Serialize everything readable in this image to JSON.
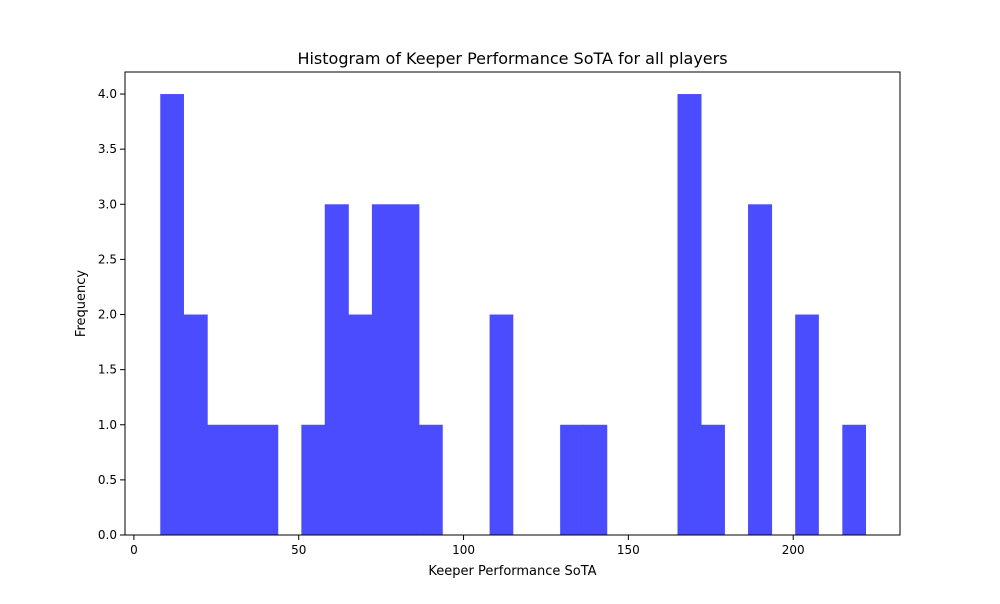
{
  "chart_data": {
    "type": "bar",
    "title": "Histogram of Keeper Performance SoTA for all players",
    "xlabel": "Keeper Performance SoTA",
    "ylabel": "Frequency",
    "xlim": [
      -2.7,
      232.4
    ],
    "ylim": [
      0,
      4.2
    ],
    "xticks": [
      0,
      50,
      100,
      150,
      200
    ],
    "yticks": [
      0.0,
      0.5,
      1.0,
      1.5,
      2.0,
      2.5,
      3.0,
      3.5,
      4.0
    ],
    "bar_color": "#4c4cff",
    "bins": [
      {
        "x0": 8.0,
        "x1": 15.1,
        "value": 4
      },
      {
        "x0": 15.1,
        "x1": 22.3,
        "value": 2
      },
      {
        "x0": 22.3,
        "x1": 29.4,
        "value": 1
      },
      {
        "x0": 29.4,
        "x1": 36.5,
        "value": 1
      },
      {
        "x0": 36.5,
        "x1": 43.7,
        "value": 1
      },
      {
        "x0": 43.7,
        "x1": 50.8,
        "value": 0
      },
      {
        "x0": 50.8,
        "x1": 57.9,
        "value": 1
      },
      {
        "x0": 57.9,
        "x1": 65.1,
        "value": 3
      },
      {
        "x0": 65.1,
        "x1": 72.2,
        "value": 2
      },
      {
        "x0": 72.2,
        "x1": 79.3,
        "value": 3
      },
      {
        "x0": 79.3,
        "x1": 86.5,
        "value": 3
      },
      {
        "x0": 86.5,
        "x1": 93.6,
        "value": 1
      },
      {
        "x0": 93.6,
        "x1": 100.7,
        "value": 0
      },
      {
        "x0": 100.7,
        "x1": 107.9,
        "value": 0
      },
      {
        "x0": 107.9,
        "x1": 115.0,
        "value": 2
      },
      {
        "x0": 115.0,
        "x1": 122.1,
        "value": 0
      },
      {
        "x0": 122.1,
        "x1": 129.3,
        "value": 0
      },
      {
        "x0": 129.3,
        "x1": 136.4,
        "value": 1
      },
      {
        "x0": 136.4,
        "x1": 143.5,
        "value": 1
      },
      {
        "x0": 143.5,
        "x1": 150.7,
        "value": 0
      },
      {
        "x0": 150.7,
        "x1": 157.8,
        "value": 0
      },
      {
        "x0": 157.8,
        "x1": 164.9,
        "value": 0
      },
      {
        "x0": 164.9,
        "x1": 172.1,
        "value": 4
      },
      {
        "x0": 172.1,
        "x1": 179.2,
        "value": 1
      },
      {
        "x0": 179.2,
        "x1": 186.3,
        "value": 0
      },
      {
        "x0": 186.3,
        "x1": 193.5,
        "value": 3
      },
      {
        "x0": 193.5,
        "x1": 200.6,
        "value": 0
      },
      {
        "x0": 200.6,
        "x1": 207.7,
        "value": 2
      },
      {
        "x0": 207.7,
        "x1": 214.9,
        "value": 0
      },
      {
        "x0": 214.9,
        "x1": 222.0,
        "value": 1
      }
    ],
    "grid": false,
    "legend": "none"
  }
}
